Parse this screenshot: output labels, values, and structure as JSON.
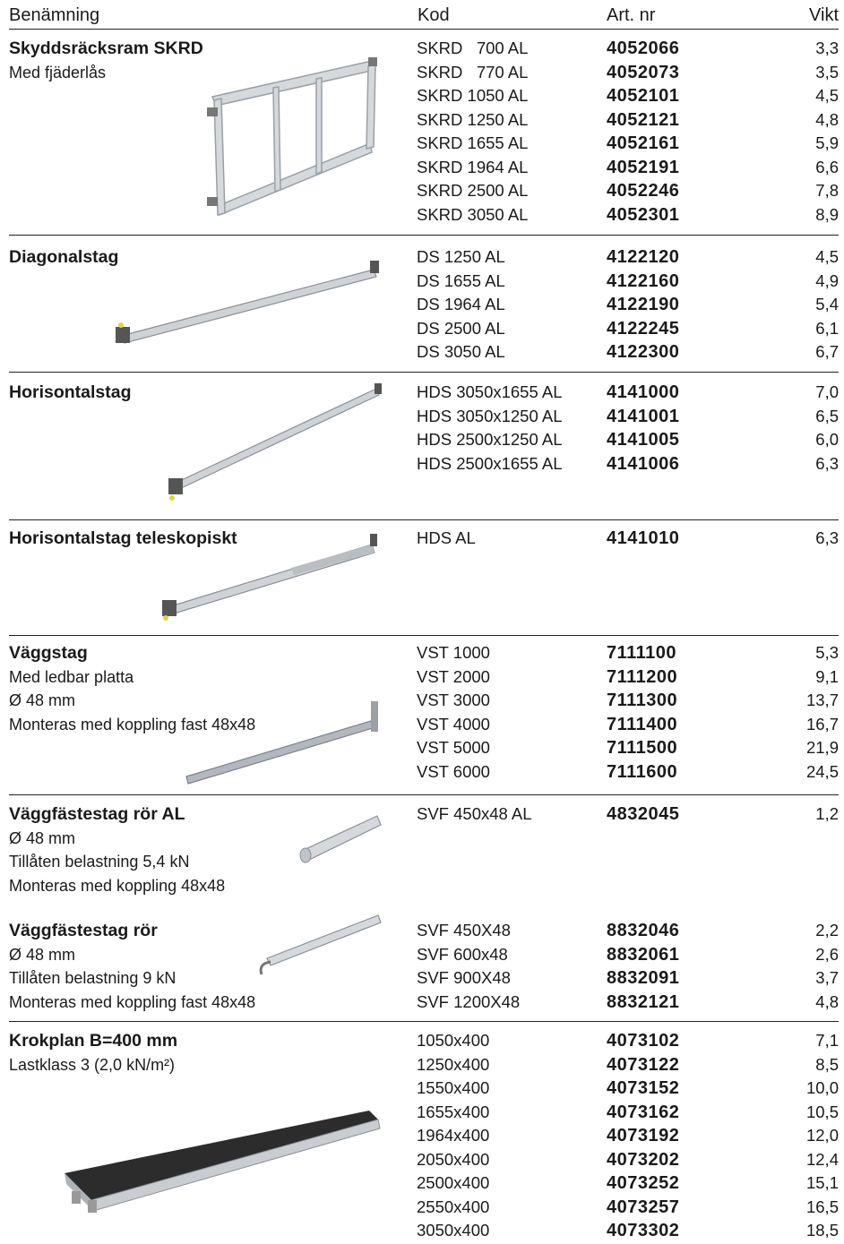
{
  "header": {
    "col_name": "Benämning",
    "col_code": "Kod",
    "col_art": "Art. nr",
    "col_weight": "Vikt"
  },
  "sections": [
    {
      "title": "Skyddsräcksram SKRD",
      "desc": [
        "Med fjäderlås"
      ],
      "rows": [
        {
          "code": "SKRD   700 AL",
          "art": "4052066",
          "weight": "3,3"
        },
        {
          "code": "SKRD   770 AL",
          "art": "4052073",
          "weight": "3,5"
        },
        {
          "code": "SKRD 1050 AL",
          "art": "4052101",
          "weight": "4,5"
        },
        {
          "code": "SKRD 1250 AL",
          "art": "4052121",
          "weight": "4,8"
        },
        {
          "code": "SKRD 1655 AL",
          "art": "4052161",
          "weight": "5,9"
        },
        {
          "code": "SKRD 1964 AL",
          "art": "4052191",
          "weight": "6,6"
        },
        {
          "code": "SKRD 2500 AL",
          "art": "4052246",
          "weight": "7,8"
        },
        {
          "code": "SKRD 3050 AL",
          "art": "4052301",
          "weight": "8,9"
        }
      ]
    },
    {
      "title": "Diagonalstag",
      "desc": [],
      "rows": [
        {
          "code": "DS 1250 AL",
          "art": "4122120",
          "weight": "4,5"
        },
        {
          "code": "DS 1655 AL",
          "art": "4122160",
          "weight": "4,9"
        },
        {
          "code": "DS 1964 AL",
          "art": "4122190",
          "weight": "5,4"
        },
        {
          "code": "DS 2500 AL",
          "art": "4122245",
          "weight": "6,1"
        },
        {
          "code": "DS 3050 AL",
          "art": "4122300",
          "weight": "6,7"
        }
      ]
    },
    {
      "title": "Horisontalstag",
      "desc": [],
      "rows": [
        {
          "code": "HDS 3050x1655 AL",
          "art": "4141000",
          "weight": "7,0"
        },
        {
          "code": "HDS 3050x1250 AL",
          "art": "4141001",
          "weight": "6,5"
        },
        {
          "code": "HDS 2500x1250 AL",
          "art": "4141005",
          "weight": "6,0"
        },
        {
          "code": "HDS 2500x1655 AL",
          "art": "4141006",
          "weight": "6,3"
        }
      ]
    },
    {
      "title": "Horisontalstag teleskopiskt",
      "desc": [],
      "rows": [
        {
          "code": "HDS AL",
          "art": "4141010",
          "weight": "6,3"
        }
      ]
    },
    {
      "title": "Väggstag",
      "desc": [
        "Med ledbar platta",
        "Ø 48 mm",
        "Monteras med koppling fast 48x48"
      ],
      "rows": [
        {
          "code": "VST 1000",
          "art": "7111100",
          "weight": "5,3"
        },
        {
          "code": "VST 2000",
          "art": "7111200",
          "weight": "9,1"
        },
        {
          "code": "VST 3000",
          "art": "7111300",
          "weight": "13,7"
        },
        {
          "code": "VST 4000",
          "art": "7111400",
          "weight": "16,7"
        },
        {
          "code": "VST 5000",
          "art": "7111500",
          "weight": "21,9"
        },
        {
          "code": "VST 6000",
          "art": "7111600",
          "weight": "24,5"
        }
      ]
    },
    {
      "title": "Väggfästestag rör AL",
      "desc": [
        "Ø 48 mm",
        "Tillåten belastning 5,4 kN",
        "Monteras med koppling 48x48"
      ],
      "rows": [
        {
          "code": "SVF 450x48 AL",
          "art": "4832045",
          "weight": "1,2"
        }
      ]
    },
    {
      "title": "Väggfästestag rör",
      "desc": [
        "Ø 48 mm",
        "Tillåten belastning 9 kN",
        "Monteras med koppling fast 48x48"
      ],
      "rows": [
        {
          "code": "SVF 450X48",
          "art": "8832046",
          "weight": "2,2"
        },
        {
          "code": "SVF 600x48",
          "art": "8832061",
          "weight": "2,6"
        },
        {
          "code": "SVF 900X48",
          "art": "8832091",
          "weight": "3,7"
        },
        {
          "code": "SVF 1200X48",
          "art": "8832121",
          "weight": "4,8"
        }
      ]
    },
    {
      "title": "Krokplan  B=400 mm",
      "desc": [
        "Lastklass 3 (2,0 kN/m²)"
      ],
      "rows": [
        {
          "code": "1050x400",
          "art": "4073102",
          "weight": "7,1"
        },
        {
          "code": "1250x400",
          "art": "4073122",
          "weight": "8,5"
        },
        {
          "code": "1550x400",
          "art": "4073152",
          "weight": "10,0"
        },
        {
          "code": "1655x400",
          "art": "4073162",
          "weight": "10,5"
        },
        {
          "code": "1964x400",
          "art": "4073192",
          "weight": "12,0"
        },
        {
          "code": "2050x400",
          "art": "4073202",
          "weight": "12,4"
        },
        {
          "code": "2500x400",
          "art": "4073252",
          "weight": "15,1"
        },
        {
          "code": "2550x400",
          "art": "4073257",
          "weight": "16,5"
        },
        {
          "code": "3050x400",
          "art": "4073302",
          "weight": "18,5"
        }
      ]
    }
  ]
}
